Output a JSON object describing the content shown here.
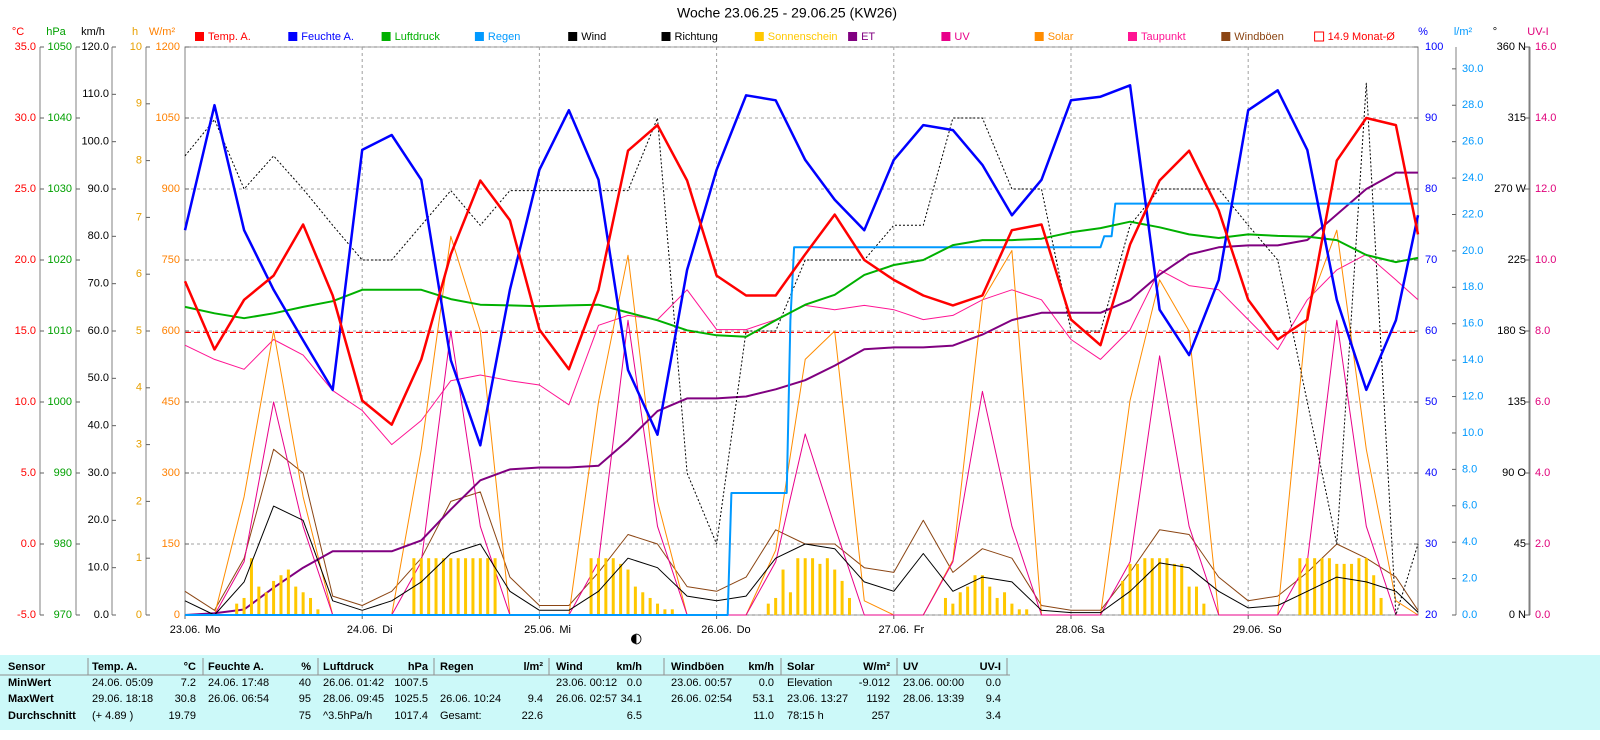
{
  "chart_data": {
    "type": "line",
    "title": "Woche 23.06.25 - 29.06.25 (KW26)",
    "xlim": [
      0,
      167
    ],
    "xticks": [
      {
        "value": 0,
        "label": "23.06."
      },
      {
        "value": 24,
        "label": "24.06."
      },
      {
        "value": 48,
        "label": "25.06."
      },
      {
        "value": 72,
        "label": "26.06."
      },
      {
        "value": 96,
        "label": "27.06."
      },
      {
        "value": 120,
        "label": "28.06."
      },
      {
        "value": 144,
        "label": "29.06."
      }
    ],
    "weekdays": [
      "Mo",
      "Di",
      "Mi",
      "Do",
      "Fr",
      "Sa",
      "So"
    ],
    "grid": true,
    "x": [
      0,
      4,
      8,
      12,
      16,
      20,
      24,
      28,
      32,
      36,
      40,
      44,
      48,
      52,
      56,
      60,
      64,
      68,
      72,
      76,
      80,
      84,
      88,
      92,
      96,
      100,
      104,
      108,
      112,
      116,
      120,
      124,
      128,
      132,
      136,
      140,
      144,
      148,
      152,
      156,
      160,
      164,
      167
    ],
    "axes": [
      {
        "label": "°C",
        "side": "left",
        "color": "#ff0000",
        "grid": true,
        "ylim": [
          -5,
          35
        ],
        "yticks": [
          {
            "value": -5,
            "label": "-5.0"
          },
          {
            "value": 0,
            "label": "0.0"
          },
          {
            "value": 5,
            "label": "5.0"
          },
          {
            "value": 10,
            "label": "10.0"
          },
          {
            "value": 15,
            "label": "15.0"
          },
          {
            "value": 20,
            "label": "20.0"
          },
          {
            "value": 25,
            "label": "25.0"
          },
          {
            "value": 30,
            "label": "30.0"
          },
          {
            "value": 35,
            "label": "35.0"
          }
        ]
      },
      {
        "label": "hPa",
        "side": "left",
        "color": "#00a000",
        "ylim": [
          970,
          1050
        ],
        "yticks": [
          970,
          980,
          990,
          1000,
          1010,
          1020,
          1030,
          1040,
          1050
        ]
      },
      {
        "label": "km/h",
        "side": "left",
        "color": "#000000",
        "ylim": [
          0,
          120
        ],
        "yticks": [
          {
            "value": 0,
            "label": "0.0"
          },
          {
            "value": 10,
            "label": "10.0"
          },
          {
            "value": 20,
            "label": "20.0"
          },
          {
            "value": 30,
            "label": "30.0"
          },
          {
            "value": 40,
            "label": "40.0"
          },
          {
            "value": 50,
            "label": "50.0"
          },
          {
            "value": 60,
            "label": "60.0"
          },
          {
            "value": 70,
            "label": "70.0"
          },
          {
            "value": 80,
            "label": "80.0"
          },
          {
            "value": 90,
            "label": "90.0"
          },
          {
            "value": 100,
            "label": "100.0"
          },
          {
            "value": 110,
            "label": "110.0"
          },
          {
            "value": 120,
            "label": "120.0"
          }
        ]
      },
      {
        "label": "h",
        "side": "left",
        "color": "#e8a000",
        "ylim": [
          0,
          10
        ],
        "yticks": [
          0,
          1,
          2,
          3,
          4,
          5,
          6,
          7,
          8,
          9,
          10
        ]
      },
      {
        "label": "W/m²",
        "side": "left",
        "color": "#ff8000",
        "ylim": [
          0,
          1200
        ],
        "yticks": [
          0,
          150,
          300,
          450,
          600,
          750,
          900,
          1050,
          1200
        ]
      },
      {
        "label": "%",
        "side": "right",
        "color": "#0000ff",
        "ylim": [
          20,
          100
        ],
        "yticks": [
          20,
          30,
          40,
          50,
          60,
          70,
          80,
          90,
          100
        ]
      },
      {
        "label": "l/m²",
        "side": "right",
        "color": "#0099ff",
        "ylim": [
          0,
          31.2
        ],
        "yticks": [
          {
            "value": 0,
            "label": "0.0"
          },
          {
            "value": 2,
            "label": "2.0"
          },
          {
            "value": 4,
            "label": "4.0"
          },
          {
            "value": 6,
            "label": "6.0"
          },
          {
            "value": 8,
            "label": "8.0"
          },
          {
            "value": 10,
            "label": "10.0"
          },
          {
            "value": 12,
            "label": "12.0"
          },
          {
            "value": 14,
            "label": "14.0"
          },
          {
            "value": 16,
            "label": "16.0"
          },
          {
            "value": 18,
            "label": "18.0"
          },
          {
            "value": 20,
            "label": "20.0"
          },
          {
            "value": 22,
            "label": "22.0"
          },
          {
            "value": 24,
            "label": "24.0"
          },
          {
            "value": 26,
            "label": "26.0"
          },
          {
            "value": 28,
            "label": "28.0"
          },
          {
            "value": 30,
            "label": "30.0"
          }
        ]
      },
      {
        "label": "°",
        "side": "right",
        "color": "#000000",
        "ylim": [
          0,
          360
        ],
        "yticks": [
          {
            "value": 0,
            "label": "0 N"
          },
          45,
          {
            "value": 90,
            "label": "90 O"
          },
          135,
          {
            "value": 180,
            "label": "180 S"
          },
          225,
          {
            "value": 270,
            "label": "270 W"
          },
          315,
          {
            "value": 360,
            "label": "360 N"
          }
        ]
      },
      {
        "label": "UV-I",
        "side": "right",
        "color": "#e0007a",
        "ylim": [
          0,
          16
        ],
        "yticks": [
          {
            "value": 0,
            "label": "0.0"
          },
          {
            "value": 2,
            "label": "2.0"
          },
          {
            "value": 4,
            "label": "4.0"
          },
          {
            "value": 6,
            "label": "6.0"
          },
          {
            "value": 8,
            "label": "8.0"
          },
          {
            "value": 10,
            "label": "10.0"
          },
          {
            "value": 12,
            "label": "12.0"
          },
          {
            "value": 14,
            "label": "14.0"
          },
          {
            "value": 16,
            "label": "16.0"
          }
        ]
      }
    ],
    "reference_line": {
      "label": "14.9 Monat-Ø",
      "value": 14.9,
      "axis": "°C",
      "color": "#ff0000"
    },
    "series": [
      {
        "name": "Temp. A.",
        "color": "#ff0000",
        "axis": "°C",
        "values": [
          18.5,
          13.7,
          17.2,
          18.9,
          22.5,
          17.5,
          10.1,
          8.4,
          13.0,
          20.4,
          25.6,
          22.8,
          15.1,
          12.3,
          17.9,
          27.7,
          29.5,
          25.6,
          18.9,
          17.5,
          17.5,
          20.4,
          23.2,
          20.0,
          18.6,
          17.5,
          16.8,
          17.5,
          22.1,
          22.5,
          15.8,
          14.0,
          21.1,
          25.6,
          27.7,
          23.5,
          17.2,
          14.4,
          15.8,
          27.0,
          30.0,
          29.5,
          21.8
        ]
      },
      {
        "name": "Feuchte A.",
        "color": "#0000ff",
        "axis": "%",
        "values": [
          74.2,
          91.8,
          74.2,
          65.8,
          58.7,
          51.7,
          85.5,
          87.6,
          81.3,
          55.9,
          43.9,
          65.8,
          82.7,
          91.1,
          81.3,
          54.5,
          45.4,
          68.6,
          82.7,
          93.2,
          92.5,
          84.1,
          78.5,
          74.2,
          84.1,
          89.0,
          88.3,
          83.4,
          76.3,
          81.3,
          92.5,
          93.0,
          94.6,
          63.0,
          56.6,
          67.2,
          91.1,
          93.9,
          85.5,
          64.4,
          51.7,
          61.5,
          76.3
        ]
      },
      {
        "name": "Luftdruck",
        "color": "#00b000",
        "axis": "hPa",
        "values": [
          1013.4,
          1012.5,
          1011.8,
          1012.5,
          1013.4,
          1014.2,
          1015.8,
          1015.8,
          1015.8,
          1014.5,
          1013.7,
          1013.6,
          1013.5,
          1013.6,
          1013.7,
          1012.6,
          1011.5,
          1010.1,
          1009.4,
          1009.2,
          1011.5,
          1013.7,
          1015.1,
          1017.9,
          1019.3,
          1020.0,
          1022.1,
          1022.8,
          1022.8,
          1023.0,
          1023.9,
          1024.5,
          1025.4,
          1024.6,
          1023.6,
          1023.1,
          1023.6,
          1023.4,
          1023.3,
          1022.8,
          1020.7,
          1019.7,
          1020.3
        ]
      },
      {
        "name": "Regen",
        "color": "#0099ff",
        "axis": "l/m²",
        "x": [
          0,
          73.5,
          74,
          81.5,
          82,
          82.5,
          124,
          124.5,
          125.5,
          126,
          167
        ],
        "values": [
          0,
          0,
          6.7,
          6.7,
          16.2,
          20.2,
          20.2,
          20.8,
          20.8,
          22.6,
          22.6
        ]
      },
      {
        "name": "Wind",
        "color": "#000000",
        "axis": "km/h",
        "values": [
          3,
          0,
          7,
          23,
          20,
          3,
          1,
          3,
          7,
          13,
          15,
          5,
          1,
          1,
          5,
          12,
          10,
          4,
          3,
          4,
          12,
          15,
          14,
          7,
          5,
          13,
          5,
          8,
          7,
          1,
          0.5,
          0.5,
          5,
          11,
          10,
          5,
          1.5,
          2,
          5,
          8,
          7,
          5,
          0.6
        ]
      },
      {
        "name": "Richtung",
        "color": "#000000",
        "axis": "°",
        "dashed": true,
        "values": [
          291,
          314,
          270,
          291,
          270,
          247,
          225,
          225,
          247,
          269,
          247,
          269,
          269,
          269,
          269,
          269,
          315,
          90,
          45,
          180,
          180,
          225,
          225,
          225,
          247,
          247,
          315,
          315,
          270,
          270,
          180,
          180,
          247,
          270,
          270,
          270,
          247,
          225,
          135,
          45,
          337,
          0,
          45
        ]
      },
      {
        "name": "Sonnenschein",
        "color": "#ffc800",
        "axis": "h",
        "kind": "bar",
        "x": [
          7,
          8,
          9,
          10,
          11,
          12,
          13,
          14,
          15,
          16,
          17,
          18,
          31,
          32,
          33,
          34,
          35,
          36,
          37,
          38,
          39,
          40,
          41,
          42,
          55,
          56,
          57,
          58,
          59,
          60,
          61,
          62,
          63,
          64,
          65,
          66,
          79,
          80,
          81,
          82,
          83,
          84,
          85,
          86,
          87,
          88,
          89,
          90,
          103,
          104,
          105,
          106,
          107,
          108,
          109,
          110,
          111,
          112,
          113,
          114,
          127,
          128,
          129,
          130,
          131,
          132,
          133,
          134,
          135,
          136,
          137,
          138,
          151,
          152,
          153,
          154,
          155,
          156,
          157,
          158,
          159,
          160,
          161,
          162
        ],
        "values": [
          0.2,
          0.3,
          1.0,
          0.5,
          0.4,
          0.6,
          0.7,
          0.8,
          0.5,
          0.4,
          0.3,
          0.1,
          1.0,
          1.0,
          1.0,
          1.0,
          1.0,
          1.0,
          1.0,
          1.0,
          1.0,
          1.0,
          1.0,
          1.0,
          1.0,
          1.0,
          1.0,
          1.0,
          0.9,
          0.8,
          0.5,
          0.4,
          0.3,
          0.2,
          0.1,
          0.1,
          0.2,
          0.3,
          0.8,
          0.4,
          1.0,
          1.0,
          1.0,
          0.9,
          1.0,
          0.8,
          0.6,
          0.3,
          0.3,
          0.2,
          0.4,
          0.5,
          0.7,
          0.7,
          0.5,
          0.3,
          0.4,
          0.2,
          0.1,
          0.1,
          0.6,
          0.9,
          0.9,
          1.0,
          1.0,
          1.0,
          1.0,
          0.9,
          0.9,
          0.5,
          0.5,
          0.2,
          1.0,
          1.0,
          1.0,
          1.0,
          1.0,
          0.9,
          0.9,
          0.9,
          1.0,
          1.0,
          0.7,
          0.3
        ]
      },
      {
        "name": "ET",
        "color": "#800080",
        "axis": "l/m²",
        "values": [
          0,
          0.1,
          0.3,
          1.5,
          2.6,
          3.5,
          3.5,
          3.5,
          4.1,
          5.8,
          7.4,
          8.0,
          8.1,
          8.1,
          8.2,
          9.6,
          11.2,
          11.9,
          11.9,
          12.0,
          12.4,
          12.9,
          13.7,
          14.6,
          14.7,
          14.7,
          14.8,
          15.4,
          16.2,
          16.6,
          16.6,
          16.6,
          17.3,
          18.7,
          19.8,
          20.2,
          20.3,
          20.3,
          20.6,
          22.0,
          23.4,
          24.3,
          24.3
        ]
      },
      {
        "name": "UV",
        "color": "#e8008a",
        "axis": "UV-I",
        "values": [
          0,
          0,
          1.5,
          6.0,
          2.5,
          0,
          0,
          0,
          1.5,
          8.0,
          2.5,
          0,
          0,
          0,
          1.5,
          8.3,
          2.5,
          0,
          0,
          0,
          1.5,
          5.1,
          2.5,
          0,
          0,
          0,
          1.5,
          6.3,
          2.5,
          0,
          0,
          0,
          1.5,
          7.3,
          2.5,
          0,
          0,
          0,
          1.5,
          8.3,
          2.5,
          0,
          0
        ]
      },
      {
        "name": "Solar",
        "color": "#ff8c00",
        "axis": "W/m²",
        "values": [
          0,
          0,
          250,
          600,
          250,
          0,
          0,
          0,
          350,
          800,
          600,
          0,
          0,
          0,
          450,
          760,
          240,
          0,
          0,
          0,
          137,
          540,
          600,
          30,
          0,
          0,
          116,
          665,
          770,
          0,
          0,
          0,
          454,
          708,
          600,
          0,
          0,
          0,
          644,
          813,
          350,
          30,
          0
        ]
      },
      {
        "name": "Taupunkt",
        "color": "#ff1493",
        "axis": "°C",
        "values": [
          14.0,
          13.0,
          12.3,
          14.4,
          13.3,
          10.8,
          9.4,
          7.0,
          8.7,
          11.5,
          11.9,
          11.5,
          11.2,
          9.8,
          15.4,
          16.1,
          15.8,
          17.9,
          15.1,
          15.1,
          15.8,
          16.8,
          16.5,
          16.8,
          16.5,
          15.8,
          16.1,
          17.2,
          17.9,
          17.2,
          14.4,
          13.0,
          15.1,
          19.3,
          18.2,
          17.9,
          15.8,
          13.7,
          17.2,
          19.3,
          20.4,
          18.6,
          17.2
        ]
      },
      {
        "name": "Windböen",
        "color": "#8b4513",
        "axis": "km/h",
        "values": [
          5,
          1,
          12,
          35,
          30,
          4,
          2,
          5,
          12,
          24,
          26,
          8,
          2,
          2,
          9,
          17,
          15,
          6,
          5,
          8,
          18,
          15,
          15,
          10,
          9,
          20,
          9,
          14,
          12,
          2,
          1,
          1,
          9,
          18,
          17,
          8,
          3,
          4,
          9,
          15,
          12,
          8,
          1
        ]
      }
    ]
  },
  "table": {
    "header": [
      "Sensor",
      "Temp. A.",
      "°C",
      "Feuchte A.",
      "%",
      "Luftdruck",
      "hPa",
      "Regen",
      "l/m²",
      "Wind",
      "km/h",
      "Windböen",
      "km/h",
      "Solar",
      "W/m²",
      "UV",
      "UV-I"
    ],
    "rows": [
      [
        "MinWert",
        "24.06.  05:09",
        "7.2",
        "24.06.  17:48",
        "40",
        "26.06.  01:42",
        "1007.5",
        null,
        null,
        "23.06.  00:12",
        "0.0",
        "23.06.  00:57",
        "0.0",
        "Elevation",
        "-9.012",
        "23.06.  00:00",
        "0.0"
      ],
      [
        "MaxWert",
        "29.06.  18:18",
        "30.8",
        "26.06.  06:54",
        "95",
        "28.06.  09:45",
        "1025.5",
        "26.06.  10:24",
        "9.4",
        "26.06.  02:57",
        "34.1",
        "26.06.  02:54",
        "53.1",
        "23.06.  13:27",
        "1192",
        "28.06.  13:39",
        "9.4"
      ],
      [
        "Durchschnitt",
        "(+ 4.89 )",
        "19.79",
        null,
        "75",
        "^3.5hPa/h",
        "1017.4",
        "Gesamt:",
        "22.6",
        null,
        "6.5",
        null,
        "11.0",
        "78:15 h",
        "257",
        null,
        "3.4"
      ]
    ]
  }
}
